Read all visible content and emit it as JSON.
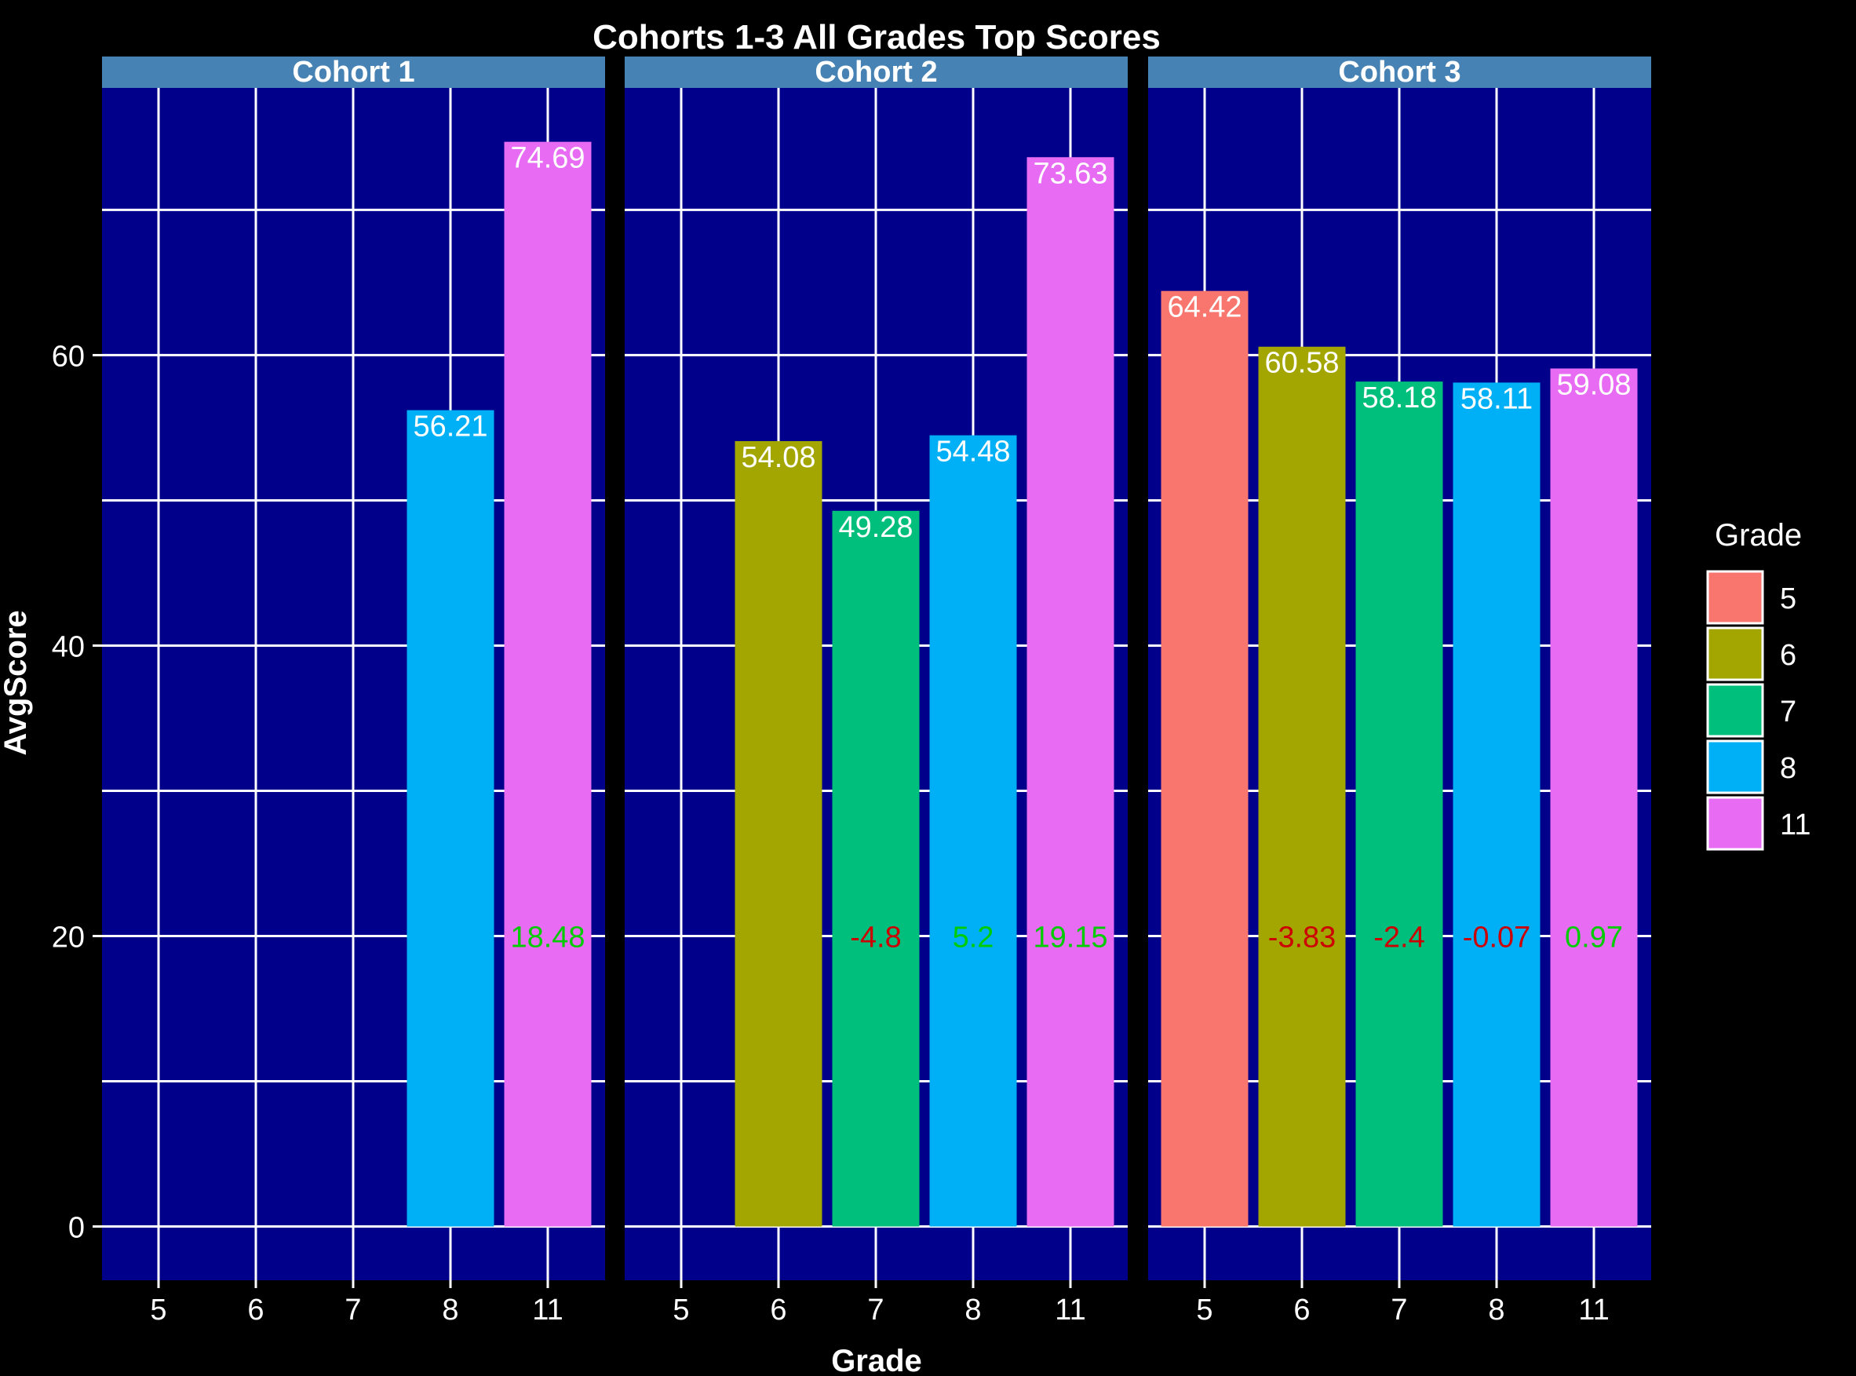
{
  "chart_data": {
    "type": "bar",
    "title": "Cohorts 1-3 All Grades Top Scores",
    "xlabel": "Grade",
    "ylabel": "AvgScore",
    "categories": [
      "5",
      "6",
      "7",
      "8",
      "11"
    ],
    "ylim": [
      -3.7,
      78.4
    ],
    "yticks": [
      0,
      20,
      40,
      60
    ],
    "grid": true,
    "legend": {
      "title": "Grade",
      "placement": "right",
      "entries": [
        "5",
        "6",
        "7",
        "8",
        "11"
      ]
    },
    "colors": {
      "5": "#F8766D",
      "6": "#A3A500",
      "7": "#00BF7D",
      "8": "#00B0F6",
      "11": "#E76BF3",
      "panel_bg": "#00008B",
      "strip_bg": "#4682B4",
      "positive_change": "#00CC00",
      "negative_change": "#CC0000",
      "text": "#FFFFFF"
    },
    "panels": [
      {
        "name": "Cohort 1",
        "bars": [
          {
            "grade": "8",
            "value": 56.21,
            "label": "56.21",
            "change": null,
            "change_label": ""
          },
          {
            "grade": "11",
            "value": 74.69,
            "label": "74.69",
            "change": 18.48,
            "change_label": "18.48"
          }
        ]
      },
      {
        "name": "Cohort 2",
        "bars": [
          {
            "grade": "6",
            "value": 54.08,
            "label": "54.08",
            "change": null,
            "change_label": ""
          },
          {
            "grade": "7",
            "value": 49.28,
            "label": "49.28",
            "change": -4.8,
            "change_label": "-4.8"
          },
          {
            "grade": "8",
            "value": 54.48,
            "label": "54.48",
            "change": 5.2,
            "change_label": "5.2"
          },
          {
            "grade": "11",
            "value": 73.63,
            "label": "73.63",
            "change": 19.15,
            "change_label": "19.15"
          }
        ]
      },
      {
        "name": "Cohort 3",
        "bars": [
          {
            "grade": "5",
            "value": 64.42,
            "label": "64.42",
            "change": null,
            "change_label": ""
          },
          {
            "grade": "6",
            "value": 60.58,
            "label": "60.58",
            "change": -3.83,
            "change_label": "-3.83"
          },
          {
            "grade": "7",
            "value": 58.18,
            "label": "58.18",
            "change": -2.4,
            "change_label": "-2.4"
          },
          {
            "grade": "8",
            "value": 58.11,
            "label": "58.11",
            "change": -0.07,
            "change_label": "-0.07"
          },
          {
            "grade": "11",
            "value": 59.08,
            "label": "59.08",
            "change": 0.97,
            "change_label": "0.97"
          }
        ]
      }
    ],
    "change_label_y": 20
  }
}
